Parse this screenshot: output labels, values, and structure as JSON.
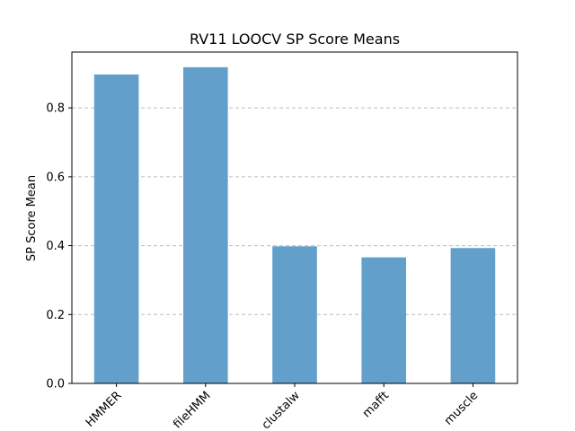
{
  "chart_data": {
    "type": "bar",
    "title": "RV11 LOOCV SP Score Means",
    "xlabel": "",
    "ylabel": "SP Score Mean",
    "categories": [
      "HMMER",
      "fileHMM",
      "clustalw",
      "mafft",
      "muscle"
    ],
    "values": [
      0.897,
      0.918,
      0.398,
      0.366,
      0.393
    ],
    "ylim": [
      0,
      0.962
    ],
    "yticks": [
      0.0,
      0.2,
      0.4,
      0.6,
      0.8
    ],
    "ytick_labels": [
      "0.0",
      "0.2",
      "0.4",
      "0.6",
      "0.8"
    ],
    "bar_color": "#62a0cb",
    "grid": "y-dashed",
    "legend": "none",
    "xtick_rotation_deg": 45
  }
}
